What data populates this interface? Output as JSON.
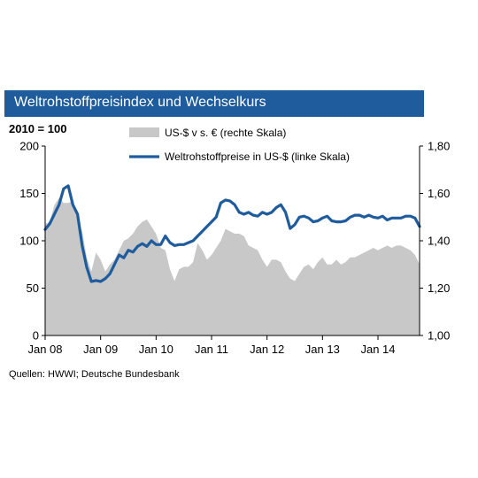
{
  "header": {
    "title": "Weltrohstoffpreisindex und Wechselkurs"
  },
  "base_label": "2010 = 100",
  "source": "Quellen:  HWWI;  Deutsche  Bundesbank",
  "colors": {
    "title_bg": "#1f5c9e",
    "line": "#1f5c9e",
    "area": "#c8c8c8"
  },
  "chart_data": {
    "type": "line",
    "x_tick_labels": [
      "Jan 08",
      "Jan 09",
      "Jan 10",
      "Jan 11",
      "Jan 12",
      "Jan 13",
      "Jan 14"
    ],
    "y_left": {
      "min": 0,
      "max": 200,
      "ticks": [
        "0",
        "50",
        "100",
        "150",
        "200"
      ]
    },
    "y_right": {
      "min": 1.0,
      "max": 1.8,
      "ticks": [
        "1,00",
        "1,20",
        "1,40",
        "1,60",
        "1,80"
      ]
    },
    "legend": {
      "placement": "top"
    },
    "series": [
      {
        "name": "US-$ v s. € (rechte Skala)",
        "type": "area",
        "axis": "right",
        "values": [
          1.47,
          1.48,
          1.55,
          1.58,
          1.56,
          1.56,
          1.57,
          1.5,
          1.44,
          1.33,
          1.27,
          1.35,
          1.32,
          1.27,
          1.3,
          1.32,
          1.36,
          1.4,
          1.41,
          1.43,
          1.46,
          1.48,
          1.49,
          1.46,
          1.43,
          1.37,
          1.36,
          1.28,
          1.23,
          1.28,
          1.29,
          1.29,
          1.31,
          1.39,
          1.36,
          1.32,
          1.34,
          1.37,
          1.4,
          1.45,
          1.44,
          1.43,
          1.43,
          1.42,
          1.38,
          1.37,
          1.36,
          1.32,
          1.29,
          1.32,
          1.32,
          1.31,
          1.27,
          1.24,
          1.23,
          1.26,
          1.29,
          1.3,
          1.28,
          1.31,
          1.33,
          1.3,
          1.3,
          1.32,
          1.3,
          1.31,
          1.33,
          1.33,
          1.34,
          1.35,
          1.36,
          1.37,
          1.36,
          1.37,
          1.38,
          1.37,
          1.38,
          1.38,
          1.37,
          1.36,
          1.34,
          1.3
        ]
      },
      {
        "name": "Weltrohstoffpreise in US-$ (linke Skala)",
        "type": "line",
        "axis": "left",
        "values": [
          112,
          118,
          128,
          138,
          155,
          158,
          138,
          128,
          95,
          72,
          57,
          58,
          57,
          60,
          65,
          75,
          85,
          82,
          90,
          88,
          94,
          97,
          94,
          100,
          96,
          96,
          105,
          98,
          95,
          96,
          96,
          98,
          100,
          105,
          110,
          115,
          120,
          125,
          140,
          143,
          142,
          138,
          130,
          128,
          130,
          127,
          126,
          130,
          128,
          130,
          135,
          138,
          130,
          113,
          117,
          125,
          126,
          124,
          120,
          121,
          124,
          126,
          121,
          120,
          120,
          121,
          125,
          127,
          127,
          125,
          127,
          125,
          124,
          126,
          122,
          124,
          124,
          124,
          126,
          126,
          124,
          115
        ]
      }
    ]
  }
}
